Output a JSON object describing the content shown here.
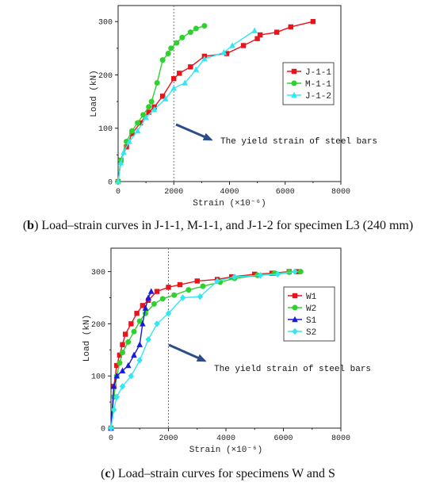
{
  "captions": {
    "b_letter": "b",
    "b_text": "Load–strain curves in J-1-1, M-1-1, and J-1-2 for specimen L3 (240 mm)",
    "c_letter": "c",
    "c_text": "Load–strain curves for specimens W and S"
  },
  "chart_data": [
    {
      "type": "line",
      "xlabel": "Strain (×10⁻⁶)",
      "ylabel": "Load (kN)",
      "xlim": [
        0,
        8000
      ],
      "ylim": [
        0,
        330
      ],
      "xticks": [
        0,
        2000,
        4000,
        6000,
        8000
      ],
      "yticks": [
        0,
        100,
        200,
        300
      ],
      "grid": false,
      "legend_position": "right",
      "reference_line_x": 2000,
      "annotation": "The yield strain of steel bars",
      "series": [
        {
          "name": "J-1-1",
          "color": "#e8141c",
          "marker": "square",
          "x": [
            0,
            100,
            300,
            500,
            800,
            1100,
            1300,
            1600,
            2000,
            2200,
            2600,
            3100,
            3900,
            4500,
            5000,
            5100,
            5700,
            6200,
            7000
          ],
          "y": [
            0,
            40,
            65,
            90,
            110,
            130,
            140,
            160,
            193,
            203,
            215,
            235,
            240,
            255,
            268,
            275,
            280,
            290,
            300
          ]
        },
        {
          "name": "M-1-1",
          "color": "#2ed12e",
          "marker": "circle",
          "x": [
            0,
            100,
            300,
            500,
            700,
            900,
            1100,
            1200,
            1400,
            1600,
            1800,
            1900,
            2100,
            2300,
            2600,
            2800,
            3100
          ],
          "y": [
            0,
            40,
            75,
            95,
            110,
            125,
            140,
            150,
            185,
            228,
            240,
            250,
            260,
            270,
            280,
            287,
            292
          ]
        },
        {
          "name": "J-1-2",
          "color": "#33e6f2",
          "marker": "triangle",
          "x": [
            0,
            100,
            200,
            400,
            700,
            1000,
            1300,
            1700,
            2000,
            2400,
            2800,
            3100,
            3800,
            4100,
            4900
          ],
          "y": [
            0,
            35,
            55,
            75,
            95,
            120,
            135,
            155,
            175,
            185,
            210,
            230,
            242,
            255,
            283
          ]
        }
      ]
    },
    {
      "type": "line",
      "xlabel": "Strain (×10⁻⁶)",
      "ylabel": "Load (kN)",
      "xlim": [
        0,
        8000
      ],
      "ylim": [
        0,
        345
      ],
      "xticks": [
        0,
        2000,
        4000,
        6000,
        8000
      ],
      "yticks": [
        0,
        100,
        200,
        300
      ],
      "grid": false,
      "legend_position": "right",
      "reference_line_x": 2000,
      "annotation": "The yield strain of steel bars",
      "series": [
        {
          "name": "W1",
          "color": "#e8141c",
          "marker": "square",
          "x": [
            0,
            100,
            200,
            300,
            400,
            500,
            700,
            900,
            1100,
            1300,
            1600,
            2000,
            2400,
            3000,
            3700,
            4200,
            5000,
            5600,
            6200,
            6500
          ],
          "y": [
            0,
            80,
            120,
            140,
            160,
            180,
            200,
            220,
            235,
            245,
            262,
            270,
            275,
            282,
            285,
            290,
            295,
            297,
            300,
            300
          ]
        },
        {
          "name": "W2",
          "color": "#2ed12e",
          "marker": "circle",
          "x": [
            0,
            100,
            200,
            300,
            400,
            600,
            800,
            1000,
            1200,
            1500,
            1800,
            2200,
            2700,
            3200,
            3800,
            4300,
            5100,
            5700,
            6200,
            6600
          ],
          "y": [
            0,
            60,
            100,
            125,
            145,
            165,
            185,
            205,
            220,
            238,
            248,
            255,
            265,
            272,
            280,
            287,
            293,
            297,
            299,
            300
          ]
        },
        {
          "name": "S1",
          "color": "#1a1adb",
          "marker": "triangle",
          "x": [
            0,
            100,
            200,
            400,
            600,
            800,
            1000,
            1100,
            1200,
            1300,
            1400
          ],
          "y": [
            0,
            80,
            100,
            110,
            120,
            140,
            160,
            200,
            230,
            250,
            262
          ]
        },
        {
          "name": "S2",
          "color": "#33e6f2",
          "marker": "diamond",
          "x": [
            0,
            100,
            200,
            400,
            700,
            1000,
            1300,
            1600,
            2000,
            2500,
            3100,
            3700,
            4300,
            5200,
            5800,
            6400
          ],
          "y": [
            0,
            35,
            60,
            80,
            100,
            130,
            170,
            200,
            220,
            250,
            252,
            282,
            290,
            293,
            295,
            300
          ]
        }
      ]
    }
  ]
}
